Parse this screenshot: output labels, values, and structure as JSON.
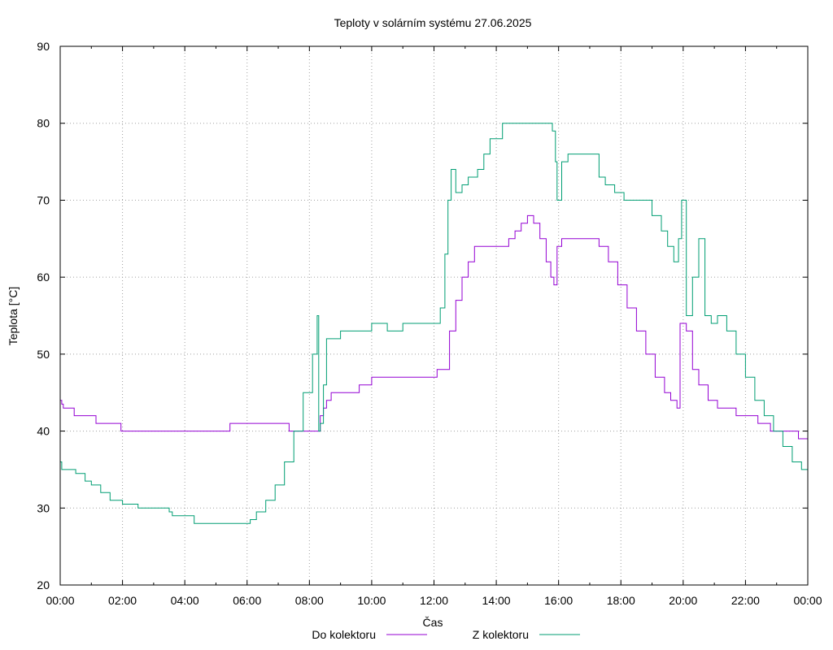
{
  "chart_data": {
    "type": "line",
    "title": "Teploty v solárním systému 27.06.2025",
    "xlabel": "Čas",
    "ylabel": "Teplota [°C]",
    "ylim": [
      20,
      90
    ],
    "yticks": [
      20,
      30,
      40,
      50,
      60,
      70,
      80,
      90
    ],
    "xlim": [
      0,
      24
    ],
    "xticks": [
      "00:00",
      "02:00",
      "04:00",
      "06:00",
      "08:00",
      "10:00",
      "12:00",
      "14:00",
      "16:00",
      "18:00",
      "20:00",
      "22:00",
      "00:00"
    ],
    "grid": true,
    "legend_position": "bottom",
    "series": [
      {
        "name": "Do kolektoru",
        "color": "#9400d3",
        "x": [
          0,
          0.05,
          0.1,
          0.4,
          0.45,
          1.1,
          1.15,
          1.9,
          1.95,
          5.4,
          5.45,
          7.3,
          7.35,
          8.15,
          8.25,
          8.35,
          8.45,
          8.55,
          8.7,
          9.0,
          9.3,
          9.6,
          9.8,
          10.0,
          10.3,
          10.6,
          11.0,
          11.5,
          12.0,
          12.1,
          12.3,
          12.5,
          12.7,
          12.9,
          13.1,
          13.3,
          13.6,
          13.9,
          14.2,
          14.4,
          14.6,
          14.8,
          15.0,
          15.2,
          15.4,
          15.6,
          15.75,
          15.85,
          15.95,
          16.1,
          16.4,
          16.8,
          17.1,
          17.3,
          17.6,
          17.9,
          18.2,
          18.5,
          18.8,
          19.1,
          19.4,
          19.6,
          19.8,
          19.85,
          19.9,
          20.1,
          20.3,
          20.5,
          20.8,
          21.1,
          21.4,
          21.7,
          22.0,
          22.4,
          22.6,
          22.8,
          23.1,
          23.4,
          23.7,
          24.0
        ],
        "values": [
          44,
          43.5,
          43,
          43,
          42,
          42,
          41,
          41,
          40,
          40,
          41,
          41,
          40,
          40,
          40,
          42,
          43,
          44,
          45,
          45,
          45,
          46,
          46,
          47,
          47,
          47,
          47,
          47,
          47,
          48,
          48,
          53,
          57,
          60,
          62,
          64,
          64,
          64,
          64,
          65,
          66,
          67,
          68,
          67,
          65,
          62,
          60,
          59,
          64,
          65,
          65,
          65,
          65,
          64,
          62,
          59,
          56,
          53,
          50,
          47,
          45,
          44,
          43,
          43,
          54,
          53,
          48,
          46,
          44,
          43,
          43,
          42,
          42,
          41,
          41,
          40,
          40,
          40,
          39,
          39
        ]
      },
      {
        "name": "Z kolektoru",
        "color": "#009e73",
        "x": [
          0,
          0.05,
          0.5,
          0.8,
          1.0,
          1.3,
          1.6,
          2.0,
          2.5,
          3.5,
          3.6,
          4.2,
          4.3,
          5.5,
          6.1,
          6.3,
          6.6,
          6.9,
          7.2,
          7.5,
          7.8,
          8.1,
          8.25,
          8.3,
          8.35,
          8.45,
          8.55,
          9.0,
          9.5,
          10.0,
          10.5,
          11.0,
          11.5,
          12.0,
          12.2,
          12.35,
          12.45,
          12.55,
          12.7,
          12.9,
          13.1,
          13.4,
          13.6,
          13.8,
          14.0,
          14.2,
          14.4,
          14.6,
          14.8,
          15.0,
          15.2,
          15.4,
          15.6,
          15.8,
          15.9,
          15.95,
          16.1,
          16.3,
          16.6,
          16.9,
          17.1,
          17.3,
          17.5,
          17.8,
          18.1,
          18.4,
          18.7,
          19.0,
          19.3,
          19.5,
          19.7,
          19.85,
          19.95,
          20.1,
          20.3,
          20.5,
          20.7,
          20.9,
          21.1,
          21.4,
          21.7,
          22.0,
          22.3,
          22.6,
          22.9,
          23.2,
          23.5,
          23.8,
          24.0
        ],
        "values": [
          36,
          35,
          34.5,
          33.5,
          33,
          32,
          31,
          30.5,
          30,
          29.5,
          29,
          29,
          28,
          28,
          28.5,
          29.5,
          31,
          33,
          36,
          40,
          45,
          50,
          55,
          40,
          41,
          46,
          52,
          53,
          53,
          54,
          53,
          54,
          54,
          54,
          56,
          63,
          70,
          74,
          71,
          72,
          73,
          74,
          76,
          78,
          78,
          80,
          80,
          80,
          80,
          80,
          80,
          80,
          80,
          79,
          75,
          70,
          75,
          76,
          76,
          76,
          76,
          73,
          72,
          71,
          70,
          70,
          70,
          68,
          66,
          64,
          62,
          65,
          70,
          55,
          60,
          65,
          55,
          54,
          55,
          53,
          50,
          47,
          44,
          42,
          40,
          38,
          36,
          35,
          34
        ]
      }
    ]
  }
}
